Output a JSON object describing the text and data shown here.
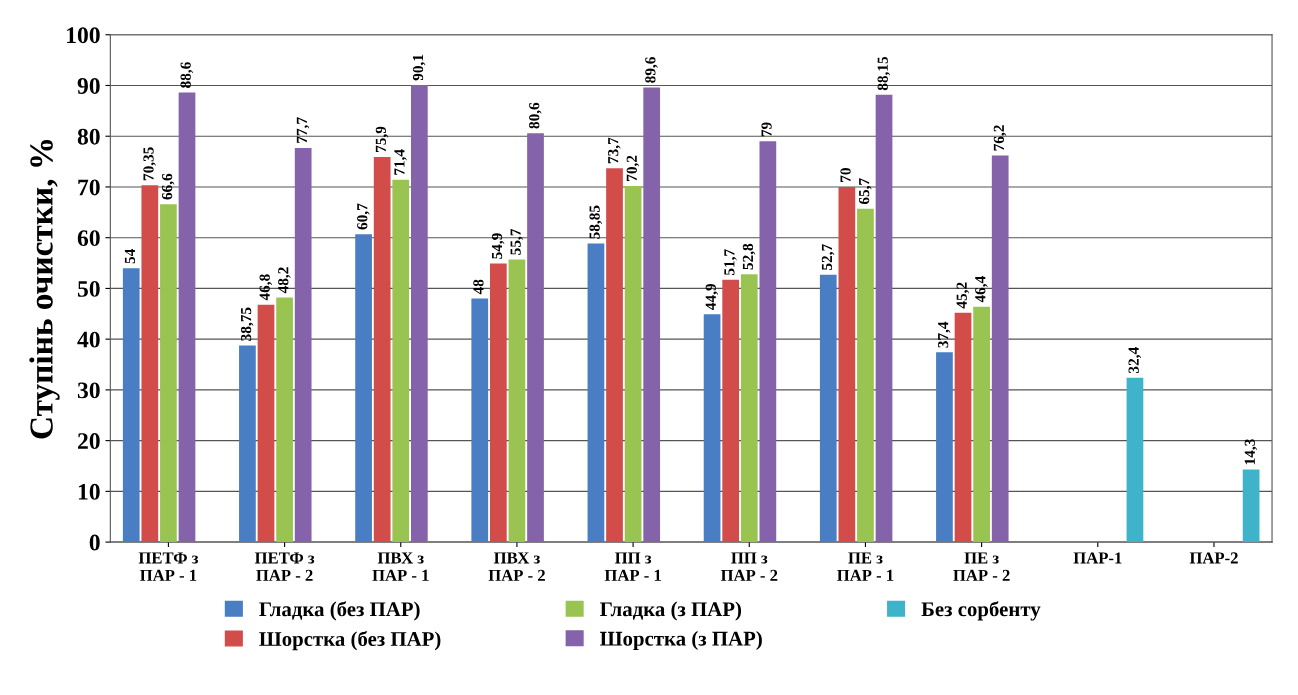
{
  "chart_data": {
    "type": "bar",
    "ylabel": "Ступінь очистки, %",
    "categories": [
      "ПЕТФ з\nПАР - 1",
      "ПЕТФ з\nПАР - 2",
      "ПВХ з\nПАР - 1",
      "ПВХ з\nПАР - 2",
      "ПП з\nПАР - 1",
      "ПП з\nПАР - 2",
      "ПЕ з\nПАР - 1",
      "ПЕ з\nПАР - 2",
      "ПАР-1",
      "ПАР-2"
    ],
    "series": [
      {
        "name": "Гладка (без ПАР)",
        "color": "#4a7ec4",
        "values": [
          54,
          38.75,
          60.7,
          48,
          58.85,
          44.9,
          52.7,
          37.4,
          null,
          null
        ],
        "value_labels": [
          "54",
          "38,75",
          "60,7",
          "48",
          "58,85",
          "44,9",
          "52,7",
          "37,4",
          null,
          null
        ]
      },
      {
        "name": "Шорстка (без ПАР)",
        "color": "#d24d4a",
        "values": [
          70.35,
          46.8,
          75.9,
          54.9,
          73.7,
          51.7,
          70,
          45.2,
          null,
          null
        ],
        "value_labels": [
          "70,35",
          "46,8",
          "75,9",
          "54,9",
          "73,7",
          "51,7",
          "70",
          "45,2",
          null,
          null
        ]
      },
      {
        "name": "Гладка (з ПАР)",
        "color": "#9ac451",
        "values": [
          66.6,
          48.2,
          71.4,
          55.7,
          70.2,
          52.8,
          65.7,
          46.4,
          null,
          null
        ],
        "value_labels": [
          "66,6",
          "48,2",
          "71,4",
          "55,7",
          "70,2",
          "52,8",
          "65,7",
          "46,4",
          null,
          null
        ]
      },
      {
        "name": "Шорстка (з ПАР)",
        "color": "#8463aa",
        "values": [
          88.6,
          77.7,
          90.1,
          80.6,
          89.6,
          79,
          88.15,
          76.2,
          null,
          null
        ],
        "value_labels": [
          "88,6",
          "77,7",
          "90,1",
          "80,6",
          "89,6",
          "79",
          "88,15",
          "76,2",
          null,
          null
        ]
      },
      {
        "name": "Без сорбенту",
        "color": "#3fb3c9",
        "values": [
          null,
          null,
          null,
          null,
          null,
          null,
          null,
          null,
          32.4,
          14.3
        ],
        "value_labels": [
          null,
          null,
          null,
          null,
          null,
          null,
          null,
          null,
          "32,4",
          "14,3"
        ]
      }
    ],
    "ylim": [
      0,
      100
    ],
    "yticks": [
      0,
      10,
      20,
      30,
      40,
      50,
      60,
      70,
      80,
      90,
      100
    ],
    "grid": "y",
    "legend": "bottom"
  }
}
